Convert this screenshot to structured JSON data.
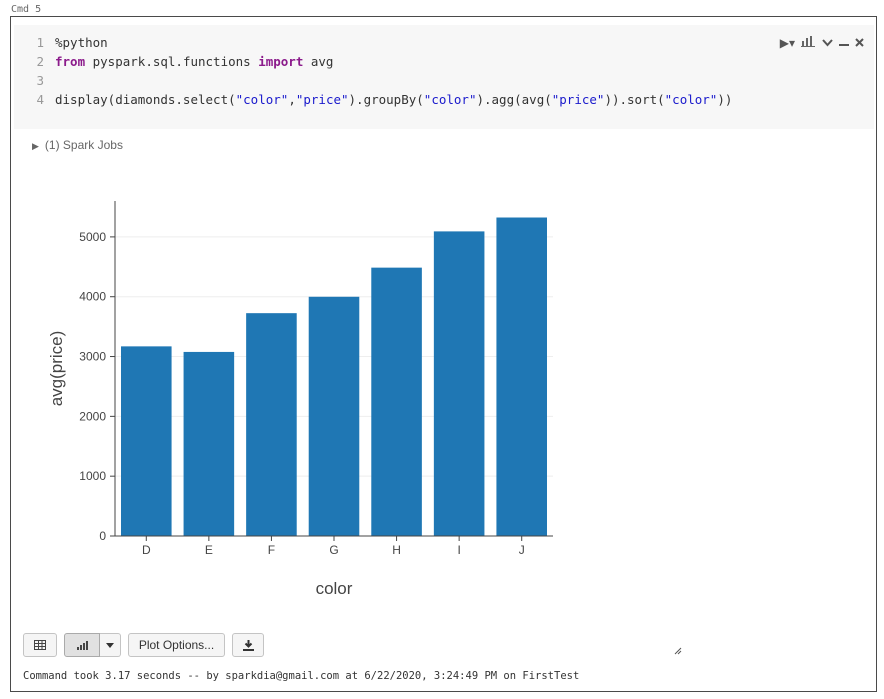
{
  "cell": {
    "label": "Cmd 5",
    "code": {
      "line_numbers": [
        "1",
        "2",
        "3",
        "4"
      ],
      "line1": "%python",
      "line2_kw1": "from",
      "line2_mod": " pyspark.sql.functions ",
      "line2_kw2": "import",
      "line2_rest": " avg",
      "line4_a": "display(diamonds.select(",
      "line4_s1": "\"color\"",
      "line4_b": ",",
      "line4_s2": "\"price\"",
      "line4_c": ").groupBy(",
      "line4_s3": "\"color\"",
      "line4_d": ").agg(avg(",
      "line4_s4": "\"price\"",
      "line4_e": ")).sort(",
      "line4_s5": "\"color\"",
      "line4_f": "))"
    },
    "tools": {
      "run_icon": "▶▾",
      "chart_icon": "📊",
      "collapse_icon": "⌄",
      "minimize_icon": "—",
      "close_icon": "✕"
    },
    "spark_jobs": "(1) Spark Jobs",
    "toolbar": {
      "plot_options_label": "Plot Options..."
    },
    "footer": "Command took 3.17 seconds -- by sparkdia@gmail.com at 6/22/2020, 3:24:49 PM on FirstTest"
  },
  "chart_data": {
    "type": "bar",
    "categories": [
      "D",
      "E",
      "F",
      "G",
      "H",
      "I",
      "J"
    ],
    "values": [
      3170,
      3077,
      3725,
      3999,
      4486,
      5092,
      5324
    ],
    "xlabel": "color",
    "ylabel": "avg(price)",
    "yticks": [
      0,
      1000,
      2000,
      3000,
      4000,
      5000
    ],
    "ylim": [
      0,
      5600
    ],
    "bar_color": "#1f77b4",
    "grid": true
  }
}
